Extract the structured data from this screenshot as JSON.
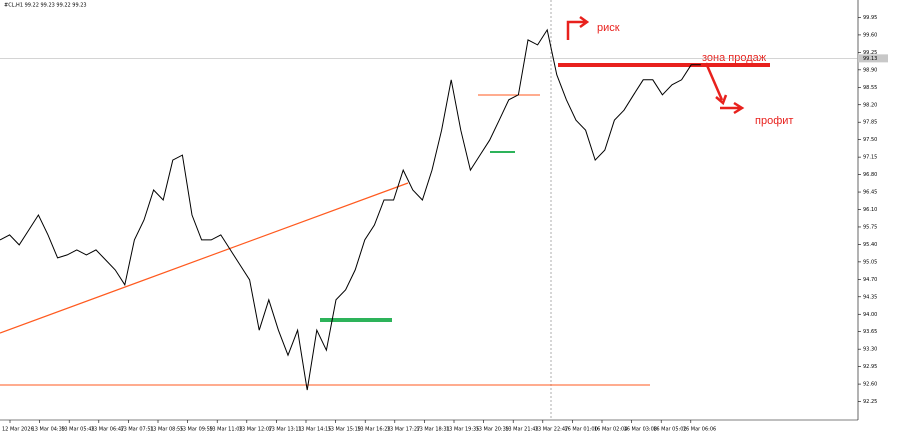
{
  "chart_data": {
    "type": "line",
    "title": "#CL,H1  99.22 99.23 99.22 99.23",
    "color": "#000000",
    "values": [
      95.49,
      95.59,
      95.39,
      95.69,
      95.99,
      95.59,
      95.13,
      95.19,
      95.29,
      95.19,
      95.29,
      95.09,
      94.89,
      94.59,
      95.49,
      95.89,
      96.49,
      96.29,
      97.09,
      97.19,
      95.99,
      95.49,
      95.49,
      95.59,
      95.29,
      94.99,
      94.69,
      93.68,
      94.29,
      93.68,
      93.18,
      93.68,
      92.48,
      93.68,
      93.28,
      94.29,
      94.49,
      94.89,
      95.49,
      95.79,
      96.29,
      96.29,
      96.89,
      96.49,
      96.29,
      96.89,
      97.69,
      98.7,
      97.69,
      96.89,
      97.19,
      97.49,
      97.89,
      98.3,
      98.4,
      99.5,
      99.4,
      99.7,
      98.8,
      98.3,
      97.89,
      97.69,
      97.09,
      97.29,
      97.89,
      98.09,
      98.4,
      98.7,
      98.7,
      98.4,
      98.6,
      98.7,
      99.0,
      99.0
    ],
    "ylim": [
      91.88,
      100.3
    ],
    "yticks": [
      92.25,
      {
        "value": 92.6,
        "label": "92.60"
      },
      92.95,
      {
        "value": 93.3,
        "label": "93.30"
      },
      93.65,
      {
        "value": 94,
        "label": "94.00"
      },
      94.35,
      {
        "value": 94.7,
        "label": "94.70"
      },
      95.05,
      {
        "value": 95.4,
        "label": "95.40"
      },
      95.75,
      {
        "value": 96.1,
        "label": "96.10"
      },
      96.45,
      {
        "value": 96.8,
        "label": "96.80"
      },
      97.15,
      {
        "value": 97.5,
        "label": "97.50"
      },
      97.85,
      {
        "value": 98.2,
        "label": "98.20"
      },
      98.55,
      {
        "value": 98.9,
        "label": "98.90"
      },
      99.25,
      {
        "value": 99.6,
        "label": "99.60"
      },
      99.95
    ],
    "current_price": 99.13,
    "xtick_labels": [
      "12 Mar 2026",
      "13 Mar 04:39",
      "13 Mar 05:43",
      "13 Mar 06:47",
      "13 Mar 07:51",
      "13 Mar 08:55",
      "13 Mar 09:59",
      "13 Mar 11:03",
      "13 Mar 12:07",
      "13 Mar 13:11",
      "13 Mar 14:15",
      "13 Mar 15:19",
      "13 Mar 16:23",
      "13 Mar 17:27",
      "13 Mar 18:31",
      "13 Mar 19:35",
      "13 Mar 20:39",
      "13 Mar 21:43",
      "13 Mar 22:47",
      "16 Mar 01:00",
      "16 Mar 02:04",
      "16 Mar 03:08",
      "16 Mar 05:02",
      "16 Mar 06:06"
    ],
    "annotations": [
      "риск",
      "зона продаж",
      "профит"
    ]
  }
}
